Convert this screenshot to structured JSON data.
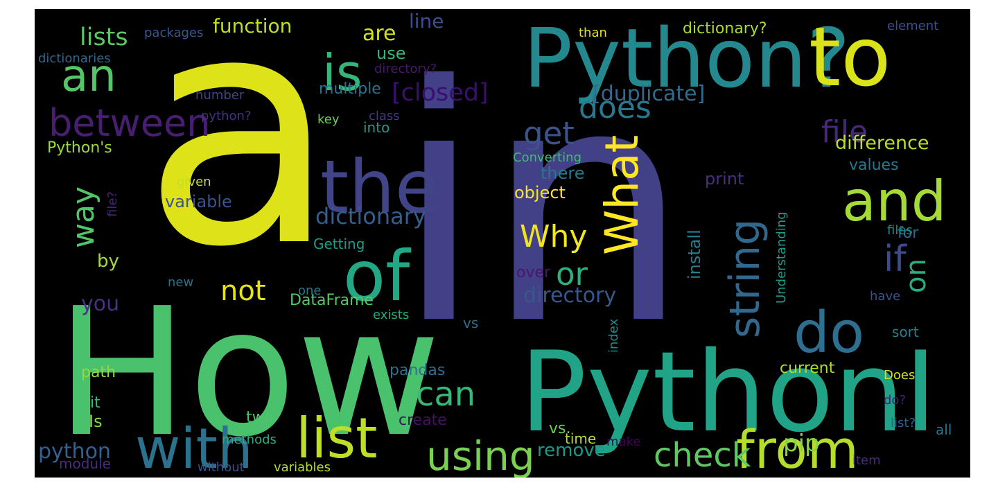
{
  "words": [
    {
      "text": "a",
      "color": "#dde318"
    },
    {
      "text": "in",
      "color": "#424086"
    },
    {
      "text": "How",
      "color": "#4ac16d"
    },
    {
      "text": "PythonI",
      "color": "#20a386"
    },
    {
      "text": "Python?",
      "color": "#23898e"
    },
    {
      "text": "to",
      "color": "#dae319"
    },
    {
      "text": "the",
      "color": "#414487"
    },
    {
      "text": "of",
      "color": "#22a884"
    },
    {
      "text": "and",
      "color": "#a5db36"
    },
    {
      "text": "with",
      "color": "#2c728e"
    },
    {
      "text": "list",
      "color": "#bddf26"
    },
    {
      "text": "from",
      "color": "#b5de2b"
    },
    {
      "text": "do",
      "color": "#2e6e8e"
    },
    {
      "text": "is",
      "color": "#35b779"
    },
    {
      "text": "an",
      "color": "#55c667"
    },
    {
      "text": "What",
      "color": "#fde725"
    },
    {
      "text": "string",
      "color": "#31688e"
    },
    {
      "text": "between",
      "color": "#481f70"
    },
    {
      "text": "using",
      "color": "#7ad151"
    },
    {
      "text": "check",
      "color": "#5ec962"
    },
    {
      "text": "can",
      "color": "#38b977"
    },
    {
      "text": "does",
      "color": "#2a788e"
    },
    {
      "text": "file",
      "color": "#482878"
    },
    {
      "text": "get",
      "color": "#3b528b"
    },
    {
      "text": "way",
      "color": "#52c569"
    },
    {
      "text": "if",
      "color": "#3e4a89"
    },
    {
      "text": "or",
      "color": "#2db27d"
    },
    {
      "text": "Why",
      "color": "#f1e51d"
    },
    {
      "text": "not",
      "color": "#e4e419"
    },
    {
      "text": "[closed]",
      "color": "#3b0f70"
    },
    {
      "text": "[duplicate]",
      "color": "#306a8e"
    },
    {
      "text": "on",
      "color": "#26ad81"
    },
    {
      "text": "dictionary",
      "color": "#355e8d"
    },
    {
      "text": "directory",
      "color": "#38588c"
    },
    {
      "text": "you",
      "color": "#46337e"
    },
    {
      "text": "pip",
      "color": "#84d44b"
    },
    {
      "text": "python",
      "color": "#34618d"
    },
    {
      "text": "remove",
      "color": "#1f988b"
    },
    {
      "text": "lists",
      "color": "#5cc863"
    },
    {
      "text": "function",
      "color": "#c0df25"
    },
    {
      "text": "are",
      "color": "#d2e21b"
    },
    {
      "text": "line",
      "color": "#3d4d8a"
    },
    {
      "text": "use",
      "color": "#35b779"
    },
    {
      "text": "multiple",
      "color": "#2c738e"
    },
    {
      "text": "difference",
      "color": "#bade28"
    },
    {
      "text": "values",
      "color": "#29798e"
    },
    {
      "text": "for",
      "color": "#30698e"
    },
    {
      "text": "Python's",
      "color": "#9dd93b"
    },
    {
      "text": "into",
      "color": "#1f9f88"
    },
    {
      "text": "there",
      "color": "#2a768e"
    },
    {
      "text": "object",
      "color": "#f8e621"
    },
    {
      "text": "variable",
      "color": "#3b528b"
    },
    {
      "text": "print",
      "color": "#46307e"
    },
    {
      "text": "install",
      "color": "#277f8e"
    },
    {
      "text": "by",
      "color": "#a2da37"
    },
    {
      "text": "pandas",
      "color": "#2d708e"
    },
    {
      "text": "two",
      "color": "#4ec36b"
    },
    {
      "text": "Is",
      "color": "#8bd646"
    },
    {
      "text": "it",
      "color": "#3aba76"
    },
    {
      "text": "path",
      "color": "#95d840"
    },
    {
      "text": "create",
      "color": "#471063"
    },
    {
      "text": "vs.",
      "color": "#6ccd5a"
    },
    {
      "text": "current",
      "color": "#addc30"
    },
    {
      "text": "sort",
      "color": "#26828e"
    },
    {
      "text": "DataFrame",
      "color": "#58c765"
    },
    {
      "text": "Getting",
      "color": "#1e9c89"
    },
    {
      "text": "over",
      "color": "#481769"
    },
    {
      "text": "vs",
      "color": "#2c718e"
    },
    {
      "text": "Converting",
      "color": "#40bd72"
    },
    {
      "text": "dictionary?",
      "color": "#aadc32"
    },
    {
      "text": "directory?",
      "color": "#48186a"
    },
    {
      "text": "packages",
      "color": "#38588c"
    },
    {
      "text": "dictionaries",
      "color": "#31668e"
    },
    {
      "text": "than",
      "color": "#e7e419"
    },
    {
      "text": "element",
      "color": "#3d4e8a"
    },
    {
      "text": "number",
      "color": "#404588"
    },
    {
      "text": "python?",
      "color": "#46327e"
    },
    {
      "text": "key",
      "color": "#6ece58"
    },
    {
      "text": "class",
      "color": "#443983"
    },
    {
      "text": "file?",
      "color": "#482878"
    },
    {
      "text": "given",
      "color": "#c2df23"
    },
    {
      "text": "Understanding",
      "color": "#1e9c89"
    },
    {
      "text": "files",
      "color": "#238a8d"
    },
    {
      "text": "new",
      "color": "#2e6d8e"
    },
    {
      "text": "one",
      "color": "#2a768e"
    },
    {
      "text": "exists",
      "color": "#25ac82"
    },
    {
      "text": "index",
      "color": "#228d8d"
    },
    {
      "text": "have",
      "color": "#3b518b"
    },
    {
      "text": "Does",
      "color": "#d5e21a"
    },
    {
      "text": "do?",
      "color": "#482071"
    },
    {
      "text": "list?",
      "color": "#34608d"
    },
    {
      "text": "time",
      "color": "#b8de29"
    },
    {
      "text": "make",
      "color": "#440154"
    },
    {
      "text": "all",
      "color": "#2b758e"
    },
    {
      "text": "methods",
      "color": "#2ab07f"
    },
    {
      "text": "item",
      "color": "#472c7a"
    },
    {
      "text": "module",
      "color": "#472d7b"
    },
    {
      "text": "without",
      "color": "#3b528b"
    },
    {
      "text": "variables",
      "color": "#b5de2b"
    }
  ]
}
